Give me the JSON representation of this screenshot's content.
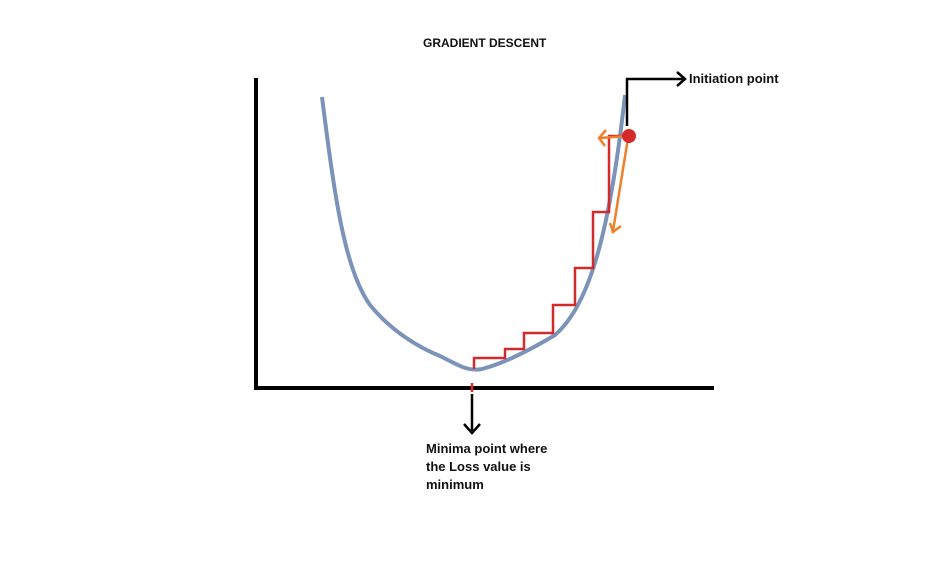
{
  "diagram": {
    "title": "GRADIENT DESCENT",
    "initiation_label": "Initiation point",
    "minima_label": "Minima point where the Loss value is minimum"
  },
  "colors": {
    "axis": "#000000",
    "curve": "#7b93b8",
    "steps": "#d22b2b",
    "start_point": "#d42a2a",
    "gradient_arrows": "#f07f2a",
    "text": "#111111"
  }
}
